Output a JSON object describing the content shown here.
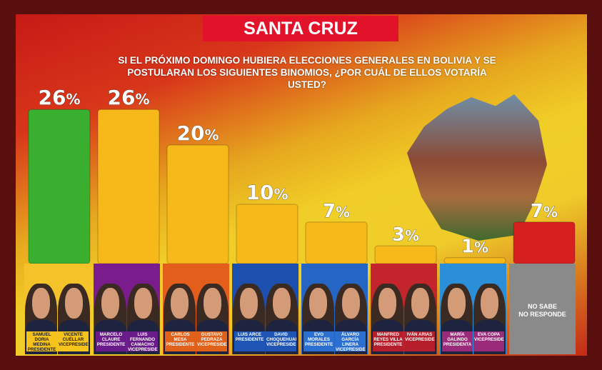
{
  "header": {
    "title": "SANTA CRUZ",
    "question_line1": "SI EL PRÓXIMO DOMINGO HUBIERA ELECCIONES GENERALES EN BOLIVIA Y SE",
    "question_line2": "POSTULARAN LOS SIGUIENTES BINOMIOS, ¿POR CUÁL DE ELLOS VOTARÍA USTED?"
  },
  "colors": {
    "leader": "#3aae2e",
    "others": "#f7b91a",
    "undecided": "#d6201e"
  },
  "chart_data": {
    "type": "bar",
    "title": "SANTA CRUZ",
    "unit": "%",
    "ylim": [
      0,
      30
    ],
    "grid": false,
    "categories": [
      "SAMUEL DORIA MEDINA / VICENTE CUÉLLAR",
      "MARCELO CLAURE / LUIS FERNANDO CAMACHO",
      "CARLOS MESA / GUSTAVO PEDRAZA",
      "LUIS ARCE / DAVID CHOQUEHUANCA",
      "EVO MORALES / ÁLVARO GARCÍA LINERA",
      "MANFRED REYES VILLA / IVÁN ARIAS",
      "MARÍA GALINDO / EVA COPA",
      "NO SABE NO RESPONDE"
    ],
    "values": [
      26,
      26,
      20,
      10,
      7,
      3,
      1,
      7
    ],
    "labels": [
      "26%",
      "26%",
      "20%",
      "10%",
      "7%",
      "3%",
      "1%",
      "7%"
    ]
  },
  "cards": [
    {
      "pres": "SAMUEL DORIA MEDINA",
      "pres_role": "PRESIDENTE",
      "vice": "VICENTE CUÉLLAR",
      "vice_role": "VICEPRESIDENTE",
      "tag": "yellow",
      "bg": "#f4c329"
    },
    {
      "pres": "MARCELO CLAURE",
      "pres_role": "PRESIDENTE",
      "vice": "LUIS FERNANDO CAMACHO",
      "vice_role": "VICEPRESIDENTE",
      "tag": "purple",
      "bg": "#7b1c8c"
    },
    {
      "pres": "CARLOS MESA",
      "pres_role": "PRESIDENTE",
      "vice": "GUSTAVO PEDRAZA",
      "vice_role": "VICEPRESIDENTE",
      "tag": "orange",
      "bg": "#e35d1b"
    },
    {
      "pres": "LUIS ARCE",
      "pres_role": "PRESIDENTE",
      "vice": "DAVID CHOQUEHUANCA",
      "vice_role": "VICEPRESIDENTE",
      "tag": "blue",
      "bg": "#1d4fae"
    },
    {
      "pres": "EVO MORALES",
      "pres_role": "PRESIDENTE",
      "vice": "ÁLVARO GARCÍA LINERA",
      "vice_role": "VICEPRESIDENTE",
      "tag": "lblue",
      "bg": "#2566c4"
    },
    {
      "pres": "MANFRED REYES VILLA",
      "pres_role": "PRESIDENTE",
      "vice": "IVÁN ARIAS",
      "vice_role": "VICEPRESIDENTE",
      "tag": "red",
      "bg": "#c4242b"
    },
    {
      "pres": "MARÍA GALINDO",
      "pres_role": "PRESIDENTA",
      "vice": "EVA COPA",
      "vice_role": "VICEPRESIDENTA",
      "tag": "pink",
      "bg": "#2a8fd8"
    }
  ],
  "nsnr": {
    "line1": "NO SABE",
    "line2": "NO RESPONDE",
    "bg": "#8a8a8a"
  }
}
